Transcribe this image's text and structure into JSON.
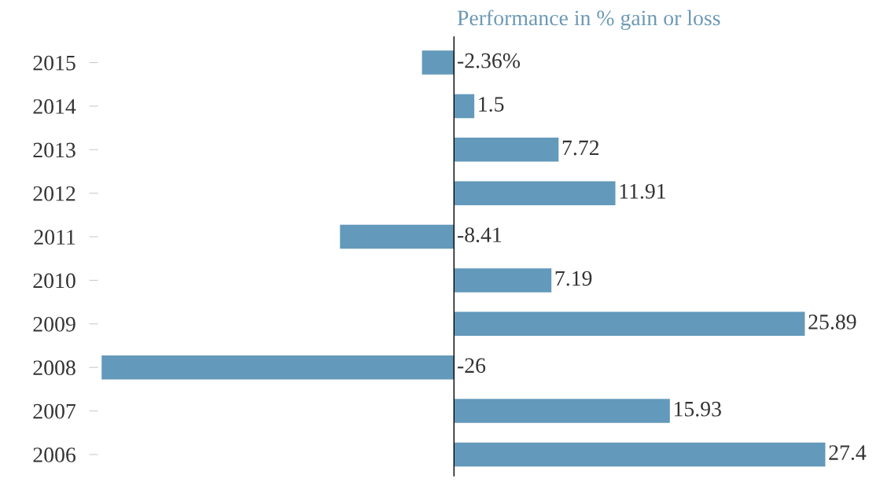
{
  "chart_data": {
    "type": "bar",
    "orientation": "horizontal",
    "title": "Performance in % gain or loss",
    "categories": [
      "2015",
      "2014",
      "2013",
      "2012",
      "2011",
      "2010",
      "2009",
      "2008",
      "2007",
      "2006"
    ],
    "values": [
      -2.36,
      1.5,
      7.72,
      11.91,
      -8.41,
      7.19,
      25.89,
      -26,
      15.93,
      27.4
    ],
    "value_labels": [
      "-2.36%",
      "1.5",
      "7.72",
      "11.91",
      "-8.41",
      "7.19",
      "25.89",
      "-26",
      "15.93",
      "27.4"
    ],
    "color": "#6399ba",
    "grid": false,
    "legend": false
  }
}
